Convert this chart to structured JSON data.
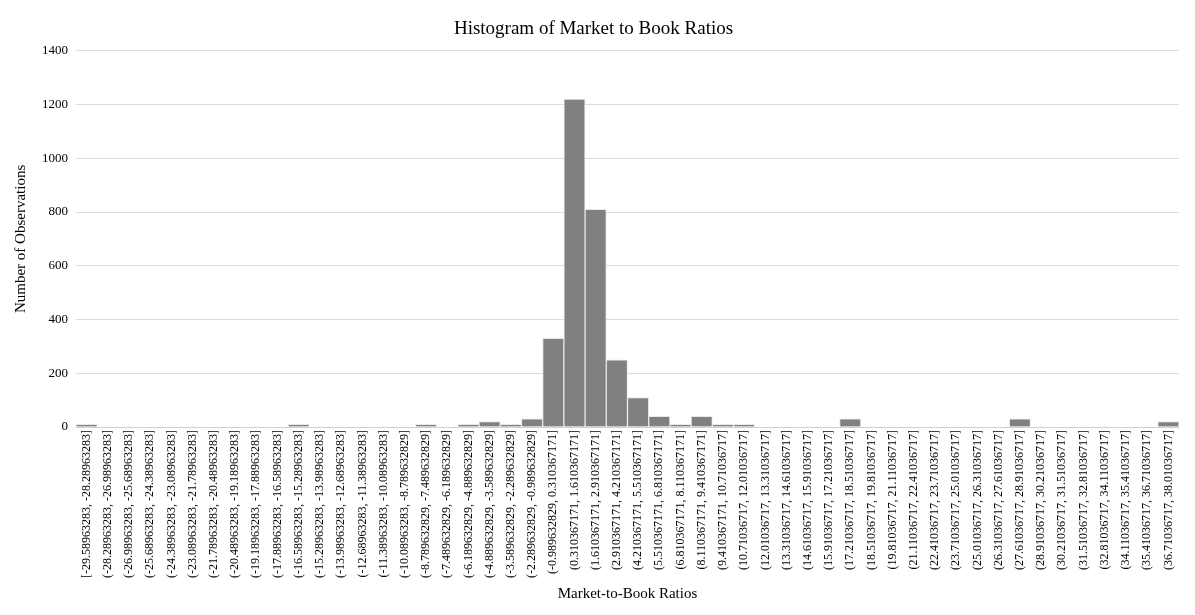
{
  "chart_data": {
    "type": "bar",
    "title": "Histogram of Market to Book Ratios",
    "xlabel": "Market-to-Book Ratios",
    "ylabel": "Number of Observations",
    "categories": [
      "[-29.58963283, -28.28963283]",
      "(-28.28963283, -26.98963283]",
      "(-26.98963283, -25.68963283]",
      "(-25.68963283, -24.38963283]",
      "(-24.38963283, -23.08963283]",
      "(-23.08963283, -21.78963283]",
      "(-21.78963283, -20.48963283]",
      "(-20.48963283, -19.18963283]",
      "(-19.18963283, -17.88963283]",
      "(-17.88963283, -16.58963283]",
      "(-16.58963283, -15.28963283]",
      "(-15.28963283, -13.98963283]",
      "(-13.98963283, -12.68963283]",
      "(-12.68963283, -11.38963283]",
      "(-11.38963283, -10.08963283]",
      "(-10.08963283, -8.789632829]",
      "(-8.789632829, -7.489632829]",
      "(-7.489632829, -6.189632829]",
      "(-6.189632829, -4.889632829]",
      "(-4.889632829, -3.589632829]",
      "(-3.589632829, -2.289632829]",
      "(-2.289632829, -0.989632829]",
      "(-0.989632829, 0.310367171]",
      "(0.310367171, 1.610367171]",
      "(1.610367171, 2.910367171]",
      "(2.910367171, 4.210367171]",
      "(4.210367171, 5.510367171]",
      "(5.510367171, 6.810367171]",
      "(6.810367171, 8.110367171]",
      "(8.110367171, 9.410367171]",
      "(9.410367171, 10.71036717]",
      "(10.71036717, 12.01036717]",
      "(12.01036717, 13.31036717]",
      "(13.31036717, 14.61036717]",
      "(14.61036717, 15.91036717]",
      "(15.91036717, 17.21036717]",
      "(17.21036717, 18.51036717]",
      "(18.51036717, 19.81036717]",
      "(19.81036717, 21.11036717]",
      "(21.11036717, 22.41036717]",
      "(22.41036717, 23.71036717]",
      "(23.71036717, 25.01036717]",
      "(25.01036717, 26.31036717]",
      "(26.31036717, 27.61036717]",
      "(27.61036717, 28.91036717]",
      "(28.91036717, 30.21036717]",
      "(30.21036717, 31.51036717]",
      "(31.51036717, 32.81036717]",
      "(32.81036717, 34.11036717]",
      "(34.11036717, 35.41036717]",
      "(35.41036717, 36.71036717]",
      "(36.71036717, 38.01036717]"
    ],
    "values": [
      10,
      0,
      0,
      0,
      0,
      0,
      0,
      0,
      0,
      0,
      10,
      0,
      0,
      0,
      0,
      0,
      10,
      0,
      10,
      20,
      10,
      30,
      330,
      1220,
      810,
      250,
      110,
      40,
      10,
      40,
      10,
      10,
      0,
      0,
      0,
      0,
      30,
      0,
      0,
      0,
      0,
      0,
      0,
      0,
      30,
      0,
      0,
      0,
      0,
      0,
      0,
      20
    ],
    "color": "#808080",
    "ylim": [
      0,
      1400
    ],
    "yticks": [
      0,
      200,
      400,
      600,
      800,
      1000,
      1200,
      1400
    ],
    "grid": "y",
    "legend": false
  }
}
